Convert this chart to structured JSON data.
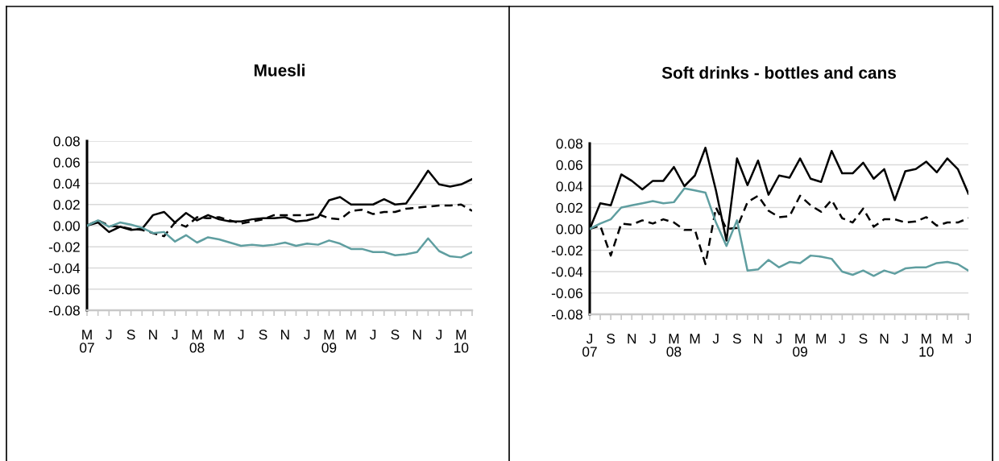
{
  "chart_data": [
    {
      "type": "line",
      "title": "Muesli",
      "categories": [
        "M\n07",
        null,
        "J",
        null,
        "S",
        null,
        "N",
        null,
        "J",
        null,
        "M\n08",
        null,
        "M",
        null,
        "J",
        null,
        "S",
        null,
        "N",
        null,
        "J",
        null,
        "M\n09",
        null,
        "M",
        null,
        "J",
        null,
        "S",
        null,
        "N",
        null,
        "J",
        null,
        "M\n10",
        null
      ],
      "series": [
        {
          "color": "#000000",
          "line_style": "solid",
          "values": [
            0.0,
            0.003,
            -0.006,
            -0.001,
            -0.004,
            -0.003,
            0.01,
            0.013,
            0.003,
            0.012,
            0.005,
            0.01,
            0.006,
            0.004,
            0.004,
            0.006,
            0.007,
            0.007,
            0.008,
            0.004,
            0.005,
            0.008,
            0.024,
            0.027,
            0.02,
            0.02,
            0.02,
            0.025,
            0.02,
            0.021,
            0.036,
            0.052,
            0.039,
            0.037,
            0.039,
            0.044
          ]
        },
        {
          "color": "#000000",
          "line_style": "dashed",
          "values": [
            0.0,
            0.005,
            0.0,
            -0.001,
            -0.003,
            -0.004,
            -0.007,
            -0.01,
            0.003,
            -0.001,
            0.008,
            0.007,
            0.008,
            0.005,
            0.002,
            0.004,
            0.006,
            0.01,
            0.01,
            0.01,
            0.01,
            0.011,
            0.007,
            0.006,
            0.014,
            0.015,
            0.011,
            0.013,
            0.013,
            0.016,
            0.017,
            0.018,
            0.019,
            0.019,
            0.02,
            0.014
          ]
        },
        {
          "color": "#5f9ea0",
          "line_style": "solid",
          "values": [
            0.0,
            0.005,
            -0.001,
            0.003,
            0.001,
            -0.002,
            -0.007,
            -0.006,
            -0.015,
            -0.009,
            -0.016,
            -0.011,
            -0.013,
            -0.016,
            -0.019,
            -0.018,
            -0.019,
            -0.018,
            -0.016,
            -0.019,
            -0.017,
            -0.018,
            -0.014,
            -0.017,
            -0.022,
            -0.022,
            -0.025,
            -0.025,
            -0.028,
            -0.027,
            -0.025,
            -0.012,
            -0.024,
            -0.029,
            -0.03,
            -0.025
          ]
        }
      ],
      "ylim": [
        -0.08,
        0.08
      ],
      "yticks": [
        {
          "value": -0.08,
          "label": "-0.08"
        },
        {
          "value": -0.06,
          "label": "-0.06"
        },
        {
          "value": -0.04,
          "label": "-0.04"
        },
        {
          "value": -0.02,
          "label": "-0.02"
        },
        {
          "value": 0,
          "label": "0.00"
        },
        {
          "value": 0.02,
          "label": "0.02"
        },
        {
          "value": 0.04,
          "label": "0.04"
        },
        {
          "value": 0.06,
          "label": "0.06"
        },
        {
          "value": 0.08,
          "label": "0.08"
        }
      ],
      "grid": "y",
      "legend": false,
      "marker": "none"
    },
    {
      "type": "line",
      "title": "Soft drinks - bottles and cans",
      "categories": [
        "J\n07",
        null,
        "S",
        null,
        "N",
        null,
        "J",
        null,
        "M\n08",
        null,
        "M",
        null,
        "J",
        null,
        "S",
        null,
        "N",
        null,
        "J",
        null,
        "M\n09",
        null,
        "M",
        null,
        "J",
        null,
        "S",
        null,
        "N",
        null,
        "J",
        null,
        "M\n10",
        null,
        "M",
        null,
        "J"
      ],
      "series": [
        {
          "color": "#000000",
          "line_style": "solid",
          "values": [
            0.0,
            0.024,
            0.022,
            0.051,
            0.045,
            0.037,
            0.045,
            0.045,
            0.058,
            0.04,
            0.05,
            0.076,
            0.036,
            -0.011,
            0.066,
            0.041,
            0.064,
            0.032,
            0.05,
            0.048,
            0.066,
            0.047,
            0.044,
            0.073,
            0.052,
            0.052,
            0.062,
            0.047,
            0.056,
            0.027,
            0.054,
            0.056,
            0.063,
            0.053,
            0.066,
            0.056,
            0.033
          ]
        },
        {
          "color": "#000000",
          "line_style": "dashed",
          "values": [
            0.0,
            0.003,
            -0.025,
            0.005,
            0.004,
            0.008,
            0.005,
            0.009,
            0.006,
            -0.001,
            -0.001,
            -0.033,
            0.02,
            0.0,
            0.001,
            0.025,
            0.031,
            0.017,
            0.011,
            0.012,
            0.031,
            0.022,
            0.016,
            0.027,
            0.01,
            0.006,
            0.019,
            0.002,
            0.009,
            0.009,
            0.006,
            0.007,
            0.011,
            0.003,
            0.006,
            0.006,
            0.01
          ]
        },
        {
          "color": "#5f9ea0",
          "line_style": "solid",
          "values": [
            0.0,
            0.005,
            0.009,
            0.02,
            0.022,
            0.024,
            0.026,
            0.024,
            0.025,
            0.038,
            0.036,
            0.034,
            0.006,
            -0.016,
            0.008,
            -0.039,
            -0.038,
            -0.029,
            -0.036,
            -0.031,
            -0.032,
            -0.025,
            -0.026,
            -0.028,
            -0.04,
            -0.043,
            -0.039,
            -0.044,
            -0.039,
            -0.042,
            -0.037,
            -0.036,
            -0.036,
            -0.032,
            -0.031,
            -0.033,
            -0.039
          ]
        }
      ],
      "ylim": [
        -0.08,
        0.08
      ],
      "yticks": [
        {
          "value": -0.08,
          "label": "-0.08"
        },
        {
          "value": -0.06,
          "label": "-0.06"
        },
        {
          "value": -0.04,
          "label": "-0.04"
        },
        {
          "value": -0.02,
          "label": "-0.02"
        },
        {
          "value": 0,
          "label": "0.00"
        },
        {
          "value": 0.02,
          "label": "0.02"
        },
        {
          "value": 0.04,
          "label": "0.04"
        },
        {
          "value": 0.06,
          "label": "0.06"
        },
        {
          "value": 0.08,
          "label": "0.08"
        }
      ],
      "grid": "y",
      "legend": false,
      "marker": "none"
    }
  ]
}
